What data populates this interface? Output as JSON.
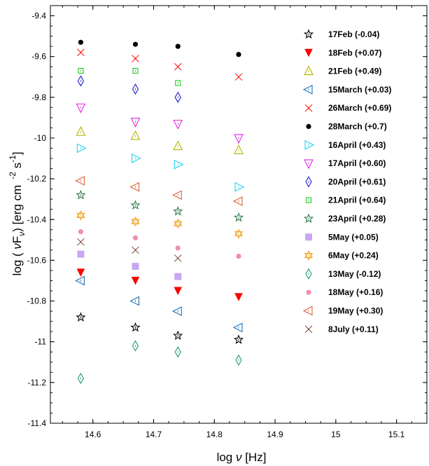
{
  "chart_data": {
    "type": "scatter",
    "xlabel": {
      "prefix": "log ",
      "nu": "ν",
      "suffix": " [Hz]"
    },
    "ylabel": {
      "a": "log ( ",
      "nu": "ν",
      "F": "F",
      "sub": "ν",
      "b": ") [erg cm",
      "exp1": "-2",
      "c": " s",
      "exp2": "-1",
      "d": "]"
    },
    "xlim": [
      14.53,
      15.15
    ],
    "ylim": [
      -11.4,
      -9.35
    ],
    "x_ticks": [
      "14.6",
      "14.7",
      "14.8",
      "14.9",
      "15",
      "15.1"
    ],
    "x_tick_values": [
      14.6,
      14.7,
      14.8,
      14.9,
      15.0,
      15.1
    ],
    "y_ticks": [
      "-9.4",
      "-9.6",
      "-9.8",
      "-10",
      "-10.2",
      "-10.4",
      "-10.6",
      "-10.8",
      "-11",
      "-11.2",
      "-11.4"
    ],
    "y_tick_values": [
      -9.4,
      -9.6,
      -9.8,
      -10.0,
      -10.2,
      -10.4,
      -10.6,
      -10.8,
      -11.0,
      -11.2,
      -11.4
    ],
    "x": [
      14.58,
      14.67,
      14.74,
      14.84
    ],
    "grid": false,
    "legend_position": "right",
    "series": [
      {
        "name": "17Feb (-0.04)",
        "marker": "star",
        "color": "#000000",
        "values": [
          -10.88,
          -10.93,
          -10.97,
          -10.99
        ]
      },
      {
        "name": "18Feb (+0.07)",
        "marker": "tri-down-filled",
        "color": "#ff0000",
        "values": [
          -10.66,
          -10.7,
          -10.75,
          -10.78
        ]
      },
      {
        "name": "21Feb (+0.49)",
        "marker": "tri-up",
        "color": "#b5b500",
        "values": [
          -9.97,
          -9.99,
          -10.04,
          -10.06
        ]
      },
      {
        "name": "15March (+0.03)",
        "marker": "tri-left",
        "color": "#1f6fb5",
        "values": [
          -10.7,
          -10.8,
          -10.85,
          -10.93
        ]
      },
      {
        "name": "26March (+0.69)",
        "marker": "x",
        "color": "#ff2020",
        "values": [
          -9.58,
          -9.61,
          -9.65,
          -9.7
        ]
      },
      {
        "name": "28March (+0.7)",
        "marker": "dot",
        "color": "#000000",
        "values": [
          -9.53,
          -9.54,
          -9.55,
          -9.59
        ]
      },
      {
        "name": "16April (+0.43)",
        "marker": "tri-right",
        "color": "#21d4f0",
        "values": [
          -10.05,
          -10.1,
          -10.13,
          -10.24
        ]
      },
      {
        "name": "17April (+0.60)",
        "marker": "tri-down",
        "color": "#e026e0",
        "values": [
          -9.85,
          -9.92,
          -9.93,
          -10.0
        ]
      },
      {
        "name": "20April (+0.61)",
        "marker": "diamond",
        "color": "#1f1fcc",
        "values": [
          -9.72,
          -9.76,
          -9.8,
          null
        ]
      },
      {
        "name": "21April (+0.64)",
        "marker": "square",
        "color": "#1fc91f",
        "values": [
          -9.67,
          -9.67,
          -9.73,
          null
        ]
      },
      {
        "name": "23April (+0.28)",
        "marker": "star",
        "color": "#2e7a4a",
        "values": [
          -10.28,
          -10.33,
          -10.36,
          -10.39
        ]
      },
      {
        "name": "5May (+0.05)",
        "marker": "square-filled",
        "color": "#c9a6f2",
        "values": [
          -10.57,
          -10.63,
          -10.68,
          null
        ]
      },
      {
        "name": "6May (+0.24)",
        "marker": "hexagram",
        "color": "#f0a21f",
        "values": [
          -10.38,
          -10.41,
          -10.42,
          -10.47
        ]
      },
      {
        "name": "13May (-0.12)",
        "marker": "diamond",
        "color": "#1f9a6a",
        "values": [
          -11.18,
          -11.02,
          -11.05,
          -11.09
        ]
      },
      {
        "name": "18May (+0.16)",
        "marker": "dot",
        "color": "#f28cb4",
        "values": [
          -10.46,
          -10.49,
          -10.54,
          -10.58
        ]
      },
      {
        "name": "19May (+0.30)",
        "marker": "tri-left",
        "color": "#d9603a",
        "values": [
          -10.21,
          -10.24,
          -10.28,
          -10.31
        ]
      },
      {
        "name": "8July (+0.11)",
        "marker": "x",
        "color": "#8a5a4a",
        "values": [
          -10.51,
          -10.55,
          -10.59,
          null
        ]
      }
    ]
  }
}
